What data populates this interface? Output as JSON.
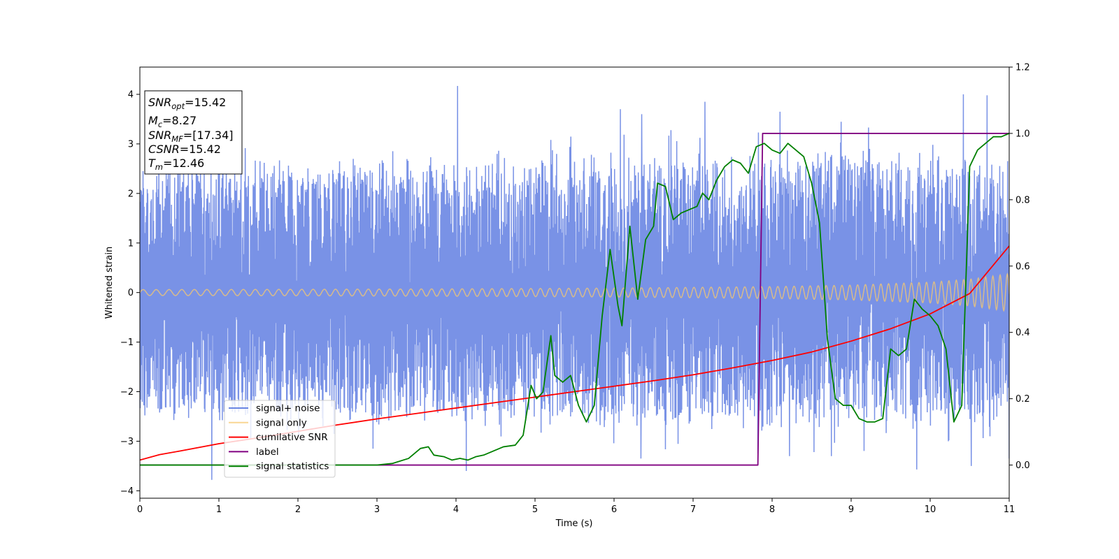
{
  "chart_data": {
    "type": "line",
    "title": "",
    "xlabel": "Time (s)",
    "ylabel": "Whitened strain",
    "xlim": [
      0,
      11
    ],
    "ylim": [
      -4.15,
      4.55
    ],
    "y2lim": [
      -0.1,
      1.2
    ],
    "xticks": [
      0,
      1,
      2,
      3,
      4,
      5,
      6,
      7,
      8,
      9,
      10,
      11
    ],
    "xtick_labels": [
      "0",
      "1",
      "2",
      "3",
      "4",
      "5",
      "6",
      "7",
      "8",
      "9",
      "10",
      "11"
    ],
    "yticks": [
      -4,
      -3,
      -2,
      -1,
      0,
      1,
      2,
      3,
      4
    ],
    "ytick_labels": [
      "−4",
      "−3",
      "−2",
      "−1",
      "0",
      "1",
      "2",
      "3",
      "4"
    ],
    "y2ticks": [
      0.0,
      0.2,
      0.4,
      0.6,
      0.8,
      1.0,
      1.2
    ],
    "y2tick_labels": [
      "0.0",
      "0.2",
      "0.4",
      "0.6",
      "0.8",
      "1.0",
      "1.2"
    ],
    "grid": false,
    "legend_position": "lower-left",
    "series": [
      {
        "name": "signal+ noise",
        "axis": "left",
        "color": "#6a86e3",
        "envelope": {
          "x": [
            0,
            1,
            2,
            3,
            4,
            5,
            6,
            7,
            8,
            9,
            10,
            11
          ],
          "upper": [
            2.4,
            2.6,
            2.5,
            2.6,
            2.5,
            2.6,
            2.7,
            2.7,
            2.8,
            2.7,
            2.7,
            2.6
          ],
          "lower": [
            -2.4,
            -2.5,
            -2.5,
            -2.6,
            -2.5,
            -2.5,
            -2.6,
            -2.6,
            -2.7,
            -2.6,
            -2.6,
            -2.6
          ]
        },
        "spikes": [
          {
            "x": 0.91,
            "y": -3.78
          },
          {
            "x": 1.05,
            "y": 2.95
          },
          {
            "x": 2.95,
            "y": -3.15
          },
          {
            "x": 4.02,
            "y": 4.17
          },
          {
            "x": 4.13,
            "y": -3.6
          },
          {
            "x": 6.08,
            "y": 3.7
          },
          {
            "x": 6.34,
            "y": -3.35
          },
          {
            "x": 6.35,
            "y": 3.6
          },
          {
            "x": 7.15,
            "y": 3.85
          },
          {
            "x": 7.82,
            "y": -3.25
          },
          {
            "x": 8.1,
            "y": 3.65
          },
          {
            "x": 8.22,
            "y": -3.3
          },
          {
            "x": 8.75,
            "y": -3.3
          },
          {
            "x": 9.22,
            "y": 3.33
          },
          {
            "x": 9.83,
            "y": -3.57
          },
          {
            "x": 10.42,
            "y": 4.0
          },
          {
            "x": 10.52,
            "y": -3.5
          },
          {
            "x": 10.72,
            "y": 3.98
          },
          {
            "x": 11.0,
            "y": -3.35
          }
        ]
      },
      {
        "name": "signal only",
        "axis": "left",
        "color": "#f7c86d",
        "amplitude": {
          "x": [
            0,
            2,
            4,
            6,
            8,
            9,
            10,
            10.5,
            11
          ],
          "a": [
            0.06,
            0.065,
            0.075,
            0.09,
            0.12,
            0.15,
            0.21,
            0.27,
            0.38
          ]
        },
        "frequency_hz": {
          "x": [
            0,
            11
          ],
          "f": [
            6.0,
            11.0
          ]
        }
      },
      {
        "name": "cumilative SNR",
        "axis": "left",
        "color": "#ff0000",
        "x": [
          0,
          0.25,
          0.5,
          1,
          1.5,
          2,
          2.5,
          3,
          3.5,
          4,
          4.5,
          5,
          5.5,
          6,
          6.5,
          7,
          7.5,
          8,
          8.5,
          9,
          9.5,
          10,
          10.5,
          11
        ],
        "y": [
          -3.38,
          -3.27,
          -3.2,
          -3.05,
          -2.93,
          -2.8,
          -2.67,
          -2.55,
          -2.44,
          -2.33,
          -2.22,
          -2.11,
          -2.0,
          -1.89,
          -1.78,
          -1.66,
          -1.52,
          -1.37,
          -1.2,
          -0.98,
          -0.73,
          -0.43,
          -0.02,
          0.94
        ]
      },
      {
        "name": "label",
        "axis": "right",
        "color": "#800080",
        "x": [
          0,
          7.82,
          7.88,
          11
        ],
        "y": [
          0,
          0,
          1,
          1
        ]
      },
      {
        "name": "signal statistics",
        "axis": "right",
        "color": "#008000",
        "x": [
          0,
          3.0,
          3.2,
          3.4,
          3.55,
          3.65,
          3.72,
          3.85,
          3.95,
          4.05,
          4.15,
          4.25,
          4.35,
          4.45,
          4.6,
          4.75,
          4.85,
          4.95,
          5.02,
          5.1,
          5.2,
          5.25,
          5.35,
          5.45,
          5.55,
          5.65,
          5.75,
          5.85,
          5.95,
          6.05,
          6.1,
          6.2,
          6.3,
          6.4,
          6.5,
          6.55,
          6.65,
          6.75,
          6.85,
          6.95,
          7.05,
          7.12,
          7.2,
          7.3,
          7.4,
          7.5,
          7.6,
          7.7,
          7.8,
          7.9,
          8.0,
          8.1,
          8.2,
          8.3,
          8.4,
          8.5,
          8.6,
          8.7,
          8.8,
          8.9,
          9.0,
          9.1,
          9.2,
          9.3,
          9.4,
          9.5,
          9.6,
          9.7,
          9.8,
          9.9,
          10.0,
          10.1,
          10.2,
          10.3,
          10.4,
          10.5,
          10.6,
          10.7,
          10.8,
          10.9,
          11.0
        ],
        "y": [
          0.0,
          0.0,
          0.005,
          0.02,
          0.05,
          0.055,
          0.03,
          0.025,
          0.015,
          0.02,
          0.015,
          0.025,
          0.03,
          0.04,
          0.055,
          0.06,
          0.09,
          0.24,
          0.2,
          0.22,
          0.39,
          0.27,
          0.25,
          0.27,
          0.18,
          0.13,
          0.18,
          0.45,
          0.65,
          0.48,
          0.42,
          0.72,
          0.5,
          0.68,
          0.72,
          0.85,
          0.84,
          0.74,
          0.76,
          0.77,
          0.78,
          0.82,
          0.8,
          0.86,
          0.9,
          0.92,
          0.91,
          0.88,
          0.96,
          0.97,
          0.95,
          0.94,
          0.97,
          0.95,
          0.93,
          0.85,
          0.73,
          0.38,
          0.2,
          0.18,
          0.18,
          0.14,
          0.13,
          0.13,
          0.14,
          0.35,
          0.33,
          0.35,
          0.5,
          0.47,
          0.45,
          0.42,
          0.35,
          0.13,
          0.18,
          0.9,
          0.95,
          0.97,
          0.99,
          0.99,
          1.0
        ]
      }
    ],
    "annotation_box": {
      "lines": [
        {
          "sym": "SNR",
          "sub": "opt",
          "value": "=15.42"
        },
        {
          "sym": "M",
          "sub": "c",
          "value": "=8.27"
        },
        {
          "sym": "SNR",
          "sub": "MF",
          "value": "=[17.34]"
        },
        {
          "sym": "CSNR",
          "sub": "",
          "value": "=15.42"
        },
        {
          "sym": "T",
          "sub": "m",
          "value": "=12.46"
        }
      ]
    }
  }
}
